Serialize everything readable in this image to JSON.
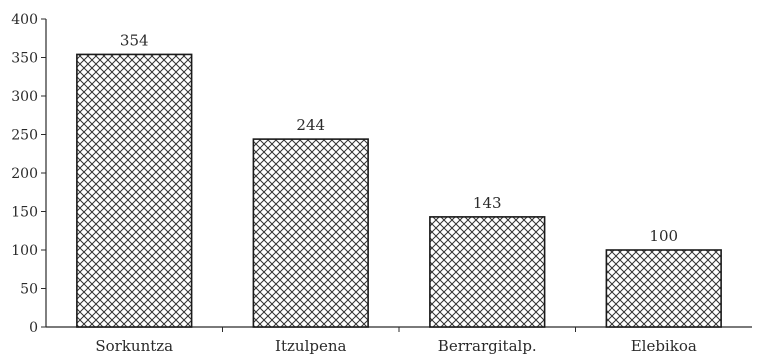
{
  "chart_data": {
    "type": "bar",
    "categories": [
      "Sorkuntza",
      "Itzulpena",
      "Berrargitalp.",
      "Elebikoa"
    ],
    "values": [
      354,
      244,
      143,
      100
    ],
    "data_labels": [
      "354",
      "244",
      "143",
      "100"
    ],
    "title": "",
    "xlabel": "",
    "ylabel": "",
    "ylim": [
      0,
      400
    ],
    "yticks": [
      0,
      50,
      100,
      150,
      200,
      250,
      300,
      350,
      400
    ],
    "ytick_labels": [
      "0",
      "50",
      "100",
      "150",
      "200",
      "250",
      "300",
      "350",
      "400"
    ],
    "grid": false,
    "legend": "none",
    "bar_fill": "crosshatch",
    "colors": {
      "bar_stroke": "#1a1a1a",
      "hatch": "#333333",
      "axis": "#2b2b2b",
      "background": "#ffffff"
    }
  }
}
